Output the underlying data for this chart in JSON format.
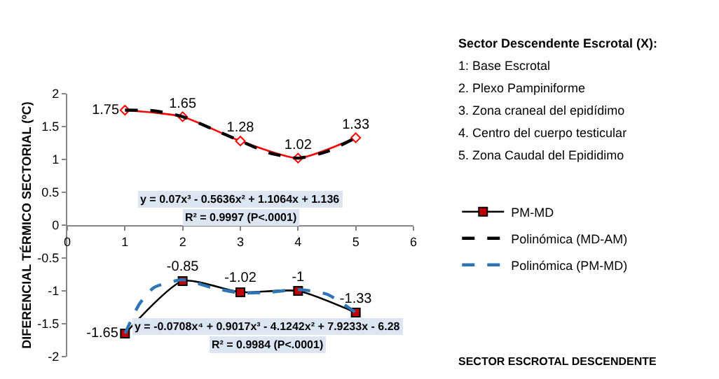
{
  "chart_data": {
    "type": "line",
    "xlabel": "SECTOR ESCROTAL DESCENDENTE",
    "ylabel": "DIFERENCIAL TÉRMICO SECTORIAL (ºC)",
    "xlim": [
      0,
      6
    ],
    "xticks": [
      0,
      1,
      2,
      3,
      4,
      5,
      6
    ],
    "ylim": [
      -2,
      2
    ],
    "yticks": [
      -2,
      -1.5,
      -1,
      -0.5,
      0,
      0.5,
      1,
      1.5,
      2
    ],
    "legend": "right",
    "series": [
      {
        "color": "#ff0000",
        "marker": "diamond",
        "x": [
          1,
          2,
          3,
          4,
          5
        ],
        "values": [
          1.75,
          1.65,
          1.28,
          1.02,
          1.33
        ],
        "data_labels": true
      },
      {
        "name": "PM-MD",
        "color": "#000000",
        "colors": [
          "#c00000",
          "#c00000",
          "#c00000",
          "#c00000",
          "#c00000"
        ],
        "marker": "square",
        "x": [
          1,
          2,
          3,
          4,
          5
        ],
        "values": [
          -1.65,
          -0.85,
          -1.02,
          -1,
          -1.33
        ],
        "data_labels": true
      },
      {
        "name": "Polinómica (MD-AM)",
        "color": "#000000",
        "line_style": "dashed",
        "marker": "none",
        "x": [
          1,
          1.5,
          2,
          2.5,
          3,
          3.5,
          4,
          4.5,
          5
        ],
        "values": [
          1.75,
          1.74,
          1.65,
          1.47,
          1.28,
          1.1,
          1.02,
          1.12,
          1.33
        ]
      },
      {
        "name": "Polinómica (PM-MD)",
        "color": "#2e75b6",
        "line_style": "dashed",
        "marker": "none",
        "x": [
          1,
          1.25,
          1.5,
          2,
          2.5,
          3,
          3.5,
          4,
          4.5,
          5
        ],
        "values": [
          -1.65,
          -1.2,
          -0.95,
          -0.83,
          -0.95,
          -1.03,
          -1.02,
          -0.98,
          -1.05,
          -1.33
        ]
      }
    ],
    "annotations": [
      "y = 0.07x³ - 0.5636x² + 1.1064x + 1.136",
      "R² = 0.9997 (P<.0001)",
      "y = -0.0708x⁴ + 0.9017x³ - 4.1242x² + 7.9233x - 6.28",
      "R² = 0.9984 (P<.0001)",
      "Sector Descendente Escrotal (X):",
      "1: Base Escrotal",
      "2. Plexo Pampiniforme",
      "3. Zona craneal del epidídimo",
      "4. Centro del cuerpo testicular",
      "5. Zona Caudal del Epididimo"
    ]
  }
}
